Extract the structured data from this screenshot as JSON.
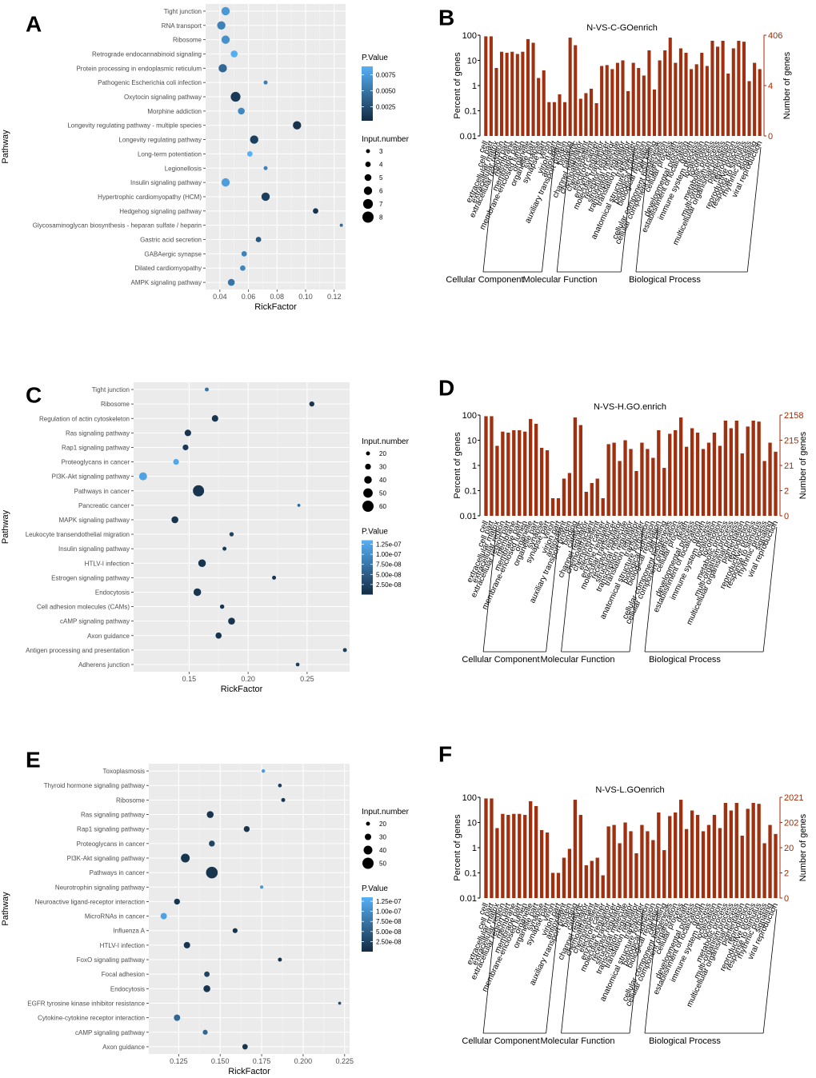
{
  "chart_data": [
    {
      "id": "A",
      "type": "scatter",
      "panel_label": "A",
      "xlabel": "RickFactor",
      "ylabel": "Pathway",
      "xlim": [
        0.03,
        0.128
      ],
      "xticks": [
        0.04,
        0.06,
        0.08,
        0.1,
        0.12
      ],
      "xtick_labels": [
        "0.04",
        "0.06",
        "0.08",
        "0.10",
        "0.12"
      ],
      "color_legend": {
        "title": "P.Value",
        "min": 0.0003,
        "max": 0.0088,
        "ticks": [
          0.0075,
          0.005,
          0.0025
        ],
        "tick_labels": [
          "0.0075",
          "0.0050",
          "0.0025"
        ]
      },
      "size_legend": {
        "title": "Input.number",
        "values": [
          3,
          4,
          5,
          6,
          7,
          8
        ],
        "labels": [
          "3",
          "4",
          "5",
          "6",
          "7",
          "8"
        ]
      },
      "legend_order": [
        "color",
        "size"
      ],
      "size_min": 3,
      "size_max": 8,
      "points": [
        {
          "pathway": "Tight junction",
          "x": 0.044,
          "size": 6,
          "p": 0.0072
        },
        {
          "pathway": "RNA transport",
          "x": 0.041,
          "size": 6,
          "p": 0.0058
        },
        {
          "pathway": "Ribosome",
          "x": 0.044,
          "size": 6,
          "p": 0.0068
        },
        {
          "pathway": "Retrograde endocannabinoid signaling",
          "x": 0.05,
          "size": 5,
          "p": 0.0085
        },
        {
          "pathway": "Protein processing in endoplasmic reticulum",
          "x": 0.042,
          "size": 6,
          "p": 0.0042
        },
        {
          "pathway": "Pathogenic Escherichia coli infection",
          "x": 0.072,
          "size": 3,
          "p": 0.0055
        },
        {
          "pathway": "Oxytocin signaling pathway",
          "x": 0.051,
          "size": 7,
          "p": 0.0012
        },
        {
          "pathway": "Morphine addiction",
          "x": 0.055,
          "size": 5,
          "p": 0.0062
        },
        {
          "pathway": "Longevity regulating pathway - multiple species",
          "x": 0.094,
          "size": 6,
          "p": 0.0008
        },
        {
          "pathway": "Longevity regulating pathway",
          "x": 0.064,
          "size": 6,
          "p": 0.0016
        },
        {
          "pathway": "Long-term potentiation",
          "x": 0.061,
          "size": 4,
          "p": 0.0088
        },
        {
          "pathway": "Legionellosis",
          "x": 0.072,
          "size": 3,
          "p": 0.0058
        },
        {
          "pathway": "Insulin signaling pathway",
          "x": 0.044,
          "size": 6,
          "p": 0.0075
        },
        {
          "pathway": "Hypertrophic cardiomyopathy (HCM)",
          "x": 0.072,
          "size": 6,
          "p": 0.0015
        },
        {
          "pathway": "Hedgehog signaling pathway",
          "x": 0.107,
          "size": 4,
          "p": 0.0009
        },
        {
          "pathway": "Glycosaminoglycan biosynthesis - heparan sulfate / heparin",
          "x": 0.125,
          "size": 1.5,
          "p": 0.0045
        },
        {
          "pathway": "Gastric acid secretion",
          "x": 0.067,
          "size": 4,
          "p": 0.003
        },
        {
          "pathway": "GABAergic synapse",
          "x": 0.057,
          "size": 4,
          "p": 0.0058
        },
        {
          "pathway": "Dilated cardiomyopathy",
          "x": 0.056,
          "size": 4,
          "p": 0.006
        },
        {
          "pathway": "AMPK signaling pathway",
          "x": 0.048,
          "size": 5,
          "p": 0.005
        }
      ]
    },
    {
      "id": "C",
      "type": "scatter",
      "panel_label": "C",
      "xlabel": "RickFactor",
      "ylabel": "Pathway",
      "xlim": [
        0.103,
        0.286
      ],
      "xticks": [
        0.15,
        0.2,
        0.25
      ],
      "xtick_labels": [
        "0.15",
        "0.20",
        "0.25"
      ],
      "color_legend": {
        "title": "P.Value",
        "min": 0.0,
        "max": 1.35e-07,
        "ticks": [
          1.25e-07,
          1e-07,
          7.5e-08,
          5e-08,
          2.5e-08
        ],
        "tick_labels": [
          "1.25e-07",
          "1.00e-07",
          "7.50e-08",
          "5.00e-08",
          "2.50e-08"
        ]
      },
      "size_legend": {
        "title": "Input.number",
        "values": [
          20,
          30,
          40,
          50,
          60
        ],
        "labels": [
          "20",
          "30",
          "40",
          "50",
          "60"
        ]
      },
      "legend_order": [
        "size",
        "color"
      ],
      "size_min": 20,
      "size_max": 60,
      "points": [
        {
          "pathway": "Tight junction",
          "x": 0.165,
          "size": 18,
          "p": 7.5e-08
        },
        {
          "pathway": "Ribosome",
          "x": 0.254,
          "size": 26,
          "p": 1e-08
        },
        {
          "pathway": "Regulation of actin cytoskeleton",
          "x": 0.172,
          "size": 34,
          "p": 1e-08
        },
        {
          "pathway": "Ras signaling pathway",
          "x": 0.149,
          "size": 34,
          "p": 1e-08
        },
        {
          "pathway": "Rap1 signaling pathway",
          "x": 0.147,
          "size": 30,
          "p": 1.5e-08
        },
        {
          "pathway": "Proteoglycans in cancer",
          "x": 0.139,
          "size": 30,
          "p": 1.25e-07
        },
        {
          "pathway": "PI3K-Akt signaling pathway",
          "x": 0.111,
          "size": 42,
          "p": 1.2e-07
        },
        {
          "pathway": "Pathways in cancer",
          "x": 0.158,
          "size": 60,
          "p": 1e-08
        },
        {
          "pathway": "Pancreatic cancer",
          "x": 0.243,
          "size": 8,
          "p": 6e-08
        },
        {
          "pathway": "MAPK signaling pathway",
          "x": 0.138,
          "size": 36,
          "p": 1e-08
        },
        {
          "pathway": "Leukocyte transendothelial migration",
          "x": 0.186,
          "size": 22,
          "p": 2.5e-08
        },
        {
          "pathway": "Insulin signaling pathway",
          "x": 0.18,
          "size": 20,
          "p": 1.5e-08
        },
        {
          "pathway": "HTLV-I infection",
          "x": 0.161,
          "size": 40,
          "p": 1e-08
        },
        {
          "pathway": "Estrogen signaling pathway",
          "x": 0.222,
          "size": 18,
          "p": 1e-08
        },
        {
          "pathway": "Endocytosis",
          "x": 0.157,
          "size": 40,
          "p": 1e-08
        },
        {
          "pathway": "Cell adhesion molecules (CAMs)",
          "x": 0.178,
          "size": 22,
          "p": 1e-08
        },
        {
          "pathway": "cAMP signaling pathway",
          "x": 0.186,
          "size": 36,
          "p": 1e-08
        },
        {
          "pathway": "Axon guidance",
          "x": 0.175,
          "size": 32,
          "p": 1e-08
        },
        {
          "pathway": "Antigen processing and presentation",
          "x": 0.282,
          "size": 20,
          "p": 2e-08
        },
        {
          "pathway": "Adherens junction",
          "x": 0.242,
          "size": 16,
          "p": 2e-08
        }
      ]
    },
    {
      "id": "E",
      "type": "scatter",
      "panel_label": "E",
      "xlabel": "RickFactor",
      "ylabel": "Pathway",
      "xlim": [
        0.107,
        0.228
      ],
      "xticks": [
        0.125,
        0.15,
        0.175,
        0.2,
        0.225
      ],
      "xtick_labels": [
        "0.125",
        "0.150",
        "0.175",
        "0.200",
        "0.225"
      ],
      "color_legend": {
        "title": "P.Value",
        "min": 0.0,
        "max": 1.35e-07,
        "ticks": [
          1.25e-07,
          1e-07,
          7.5e-08,
          5e-08,
          2.5e-08
        ],
        "tick_labels": [
          "1.25e-07",
          "1.00e-07",
          "7.50e-08",
          "5.00e-08",
          "2.50e-08"
        ]
      },
      "size_legend": {
        "title": "Input.number",
        "values": [
          20,
          30,
          40,
          50
        ],
        "labels": [
          "20",
          "30",
          "40",
          "50"
        ]
      },
      "legend_order": [
        "size",
        "color"
      ],
      "size_min": 20,
      "size_max": 50,
      "points": [
        {
          "pathway": "Toxoplasmosis",
          "x": 0.176,
          "size": 14,
          "p": 1.15e-07
        },
        {
          "pathway": "Thyroid hormone signaling pathway",
          "x": 0.186,
          "size": 16,
          "p": 2e-08
        },
        {
          "pathway": "Ribosome",
          "x": 0.188,
          "size": 18,
          "p": 1e-08
        },
        {
          "pathway": "Ras signaling pathway",
          "x": 0.144,
          "size": 32,
          "p": 1e-08
        },
        {
          "pathway": "Rap1 signaling pathway",
          "x": 0.166,
          "size": 28,
          "p": 1e-08
        },
        {
          "pathway": "Proteoglycans in cancer",
          "x": 0.145,
          "size": 28,
          "p": 2.5e-08
        },
        {
          "pathway": "PI3K-Akt signaling pathway",
          "x": 0.129,
          "size": 40,
          "p": 1e-08
        },
        {
          "pathway": "Pathways in cancer",
          "x": 0.145,
          "size": 52,
          "p": 1e-08
        },
        {
          "pathway": "Neurotrophin signaling pathway",
          "x": 0.175,
          "size": 12,
          "p": 1.1e-07
        },
        {
          "pathway": "Neuroactive ligand-receptor interaction",
          "x": 0.124,
          "size": 28,
          "p": 1e-08
        },
        {
          "pathway": "MicroRNAs in cancer",
          "x": 0.116,
          "size": 30,
          "p": 1.2e-07
        },
        {
          "pathway": "Influenza A",
          "x": 0.159,
          "size": 24,
          "p": 1e-08
        },
        {
          "pathway": "HTLV-I infection",
          "x": 0.13,
          "size": 30,
          "p": 1e-08
        },
        {
          "pathway": "FoxO signaling pathway",
          "x": 0.186,
          "size": 18,
          "p": 1e-08
        },
        {
          "pathway": "Focal adhesion",
          "x": 0.142,
          "size": 26,
          "p": 2.5e-08
        },
        {
          "pathway": "Endocytosis",
          "x": 0.142,
          "size": 32,
          "p": 1e-08
        },
        {
          "pathway": "EGFR tyrosine kinase inhibitor resistance",
          "x": 0.222,
          "size": 8,
          "p": 3.5e-08
        },
        {
          "pathway": "Cytokine-cytokine receptor interaction",
          "x": 0.124,
          "size": 30,
          "p": 6e-08
        },
        {
          "pathway": "cAMP signaling pathway",
          "x": 0.141,
          "size": 24,
          "p": 6e-08
        },
        {
          "pathway": "Axon guidance",
          "x": 0.165,
          "size": 26,
          "p": 1e-08
        }
      ]
    },
    {
      "id": "B",
      "type": "bar",
      "panel_label": "B",
      "title": "N-VS-C-GOenrich",
      "ylabel": "Percent of genes",
      "y2label": "Number of genes",
      "yticks": [
        "100",
        "10",
        "1",
        "0.1",
        "0.01"
      ],
      "y2ticks": [
        "406",
        "4",
        "0"
      ],
      "groups": [
        "Cellular Component",
        "Molecular Function",
        "Biological Process"
      ],
      "categories": [
        "cell",
        "cell part",
        "extracellular matrix",
        "extracellular region",
        "extracellular region part",
        "membrane",
        "membrane part",
        "membrane-enclosed lumen",
        "organelle",
        "organelle part",
        "synapse",
        "synapse part",
        "virion",
        "virion part",
        "antioxidant",
        "auxiliary transport protein",
        "binding",
        "catalytic",
        "channel regulator",
        "chemoattractant",
        "chemorepellent",
        "electron carrier",
        "enzyme regulator",
        "molecular transducer",
        "receptor regulator",
        "structural molecule",
        "transcription regulator",
        "translation regulator",
        "transporter",
        "anatomical structure formation",
        "biological adhesion",
        "biological regulation",
        "cell killing",
        "cellular component biogenesis",
        "cellular component organization",
        "cellular process",
        "death",
        "developmental process",
        "establishment of localization",
        "growth",
        "immune system process",
        "localization",
        "locomotion",
        "metabolic process",
        "multi-organism process",
        "multicellular organismal process",
        "pigmentation",
        "reproduction",
        "reproductive process",
        "response to stimulus",
        "rhythmic process",
        "signaling",
        "viral reproduction"
      ],
      "values": [
        90,
        90,
        5,
        22,
        20,
        22,
        18,
        22,
        70,
        50,
        2,
        4,
        0.22,
        0.22,
        0.45,
        0.22,
        80,
        40,
        0.3,
        0.5,
        0.75,
        0.2,
        6,
        6.5,
        4.5,
        8,
        10,
        0.6,
        8,
        5,
        2.5,
        25,
        0.7,
        10,
        25,
        80,
        8,
        30,
        20,
        4.5,
        7,
        20,
        6,
        60,
        35,
        60,
        3,
        30,
        60,
        55,
        1.5,
        8,
        4.5
      ],
      "group_ends": [
        13,
        28,
        52
      ]
    },
    {
      "id": "D",
      "type": "bar",
      "panel_label": "D",
      "title": "N-VS-H.GO.enrich",
      "ylabel": "Percent of genes",
      "y2label": "Number of genes",
      "yticks": [
        "100",
        "10",
        "1",
        "0.1",
        "0.01"
      ],
      "y2ticks": [
        "2158",
        "215",
        "21",
        "2",
        "0"
      ],
      "groups": [
        "Cellular Component",
        "Molecular Function",
        "Biological Process"
      ],
      "categories": [
        "cell",
        "cell part",
        "extracellular matrix",
        "extracellular region",
        "extracellular region part",
        "membrane",
        "membrane part",
        "membrane-enclosed lumen",
        "organelle",
        "organelle part",
        "synapse",
        "synapse part",
        "virion",
        "virion part",
        "antioxidant",
        "auxiliary transport protein",
        "binding",
        "catalytic",
        "channel regulator",
        "chemoattractant",
        "chemorepellent",
        "electron carrier",
        "enzyme regulator",
        "molecular transducer",
        "receptor regulator",
        "structural molecule",
        "transcription regulator",
        "translation regulator",
        "transporter",
        "anatomical structure formation",
        "biological adhesion",
        "biological regulation",
        "cell killing",
        "cellular component biogenesis",
        "cellular component organization",
        "cellular process",
        "death",
        "developmental process",
        "establishment of localization",
        "growth",
        "immune system process",
        "localization",
        "locomotion",
        "metabolic process",
        "multi-organism process",
        "multicellular organismal process",
        "pigmentation",
        "reproduction",
        "reproductive process",
        "response to stimulus",
        "rhythmic process",
        "signaling",
        "viral reproduction"
      ],
      "values": [
        90,
        90,
        6,
        22,
        20,
        25,
        25,
        22,
        70,
        45,
        5,
        4,
        0.05,
        0.05,
        0.3,
        0.5,
        80,
        40,
        0.09,
        0.2,
        0.3,
        0.05,
        7,
        8,
        1.5,
        10,
        4.5,
        0.6,
        8,
        4.5,
        2,
        25,
        0.8,
        18,
        25,
        80,
        5.5,
        30,
        20,
        4.5,
        8,
        20,
        6,
        60,
        30,
        60,
        3,
        35,
        60,
        55,
        1.5,
        8,
        3.5
      ],
      "group_ends": [
        13,
        28,
        52
      ]
    },
    {
      "id": "F",
      "type": "bar",
      "panel_label": "F",
      "title": "N-VS-L.GOenrich",
      "ylabel": "Percent of genes",
      "y2label": "Number of genes",
      "yticks": [
        "100",
        "10",
        "1",
        "0.1",
        "0.01"
      ],
      "y2ticks": [
        "2021",
        "202",
        "20",
        "2",
        "0"
      ],
      "groups": [
        "Cellular Component",
        "Molecular Function",
        "Biological Process"
      ],
      "categories": [
        "cell",
        "cell part",
        "extracellular matrix",
        "extracellular region",
        "extracellular region part",
        "membrane",
        "membrane part",
        "membrane-enclosed lumen",
        "organelle",
        "organelle part",
        "synapse",
        "synapse part",
        "virion",
        "virion part",
        "antioxidant",
        "auxiliary transport protein",
        "binding",
        "catalytic",
        "channel regulator",
        "chemoattractant",
        "chemorepellent",
        "electron carrier",
        "enzyme regulator",
        "molecular transducer",
        "receptor regulator",
        "structural molecule",
        "transcription regulator",
        "translation regulator",
        "transporter",
        "anatomical structure formation",
        "biological adhesion",
        "biological regulation",
        "cell killing",
        "cellular component biogenesis",
        "cellular component organization",
        "cellular process",
        "death",
        "developmental process",
        "establishment of localization",
        "growth",
        "immune system process",
        "localization",
        "locomotion",
        "metabolic process",
        "multi-organism process",
        "multicellular organismal process",
        "pigmentation",
        "reproduction",
        "reproductive process",
        "response to stimulus",
        "rhythmic process",
        "signaling",
        "viral reproduction"
      ],
      "values": [
        90,
        90,
        6,
        22,
        20,
        22,
        22,
        20,
        70,
        45,
        5,
        4,
        0.1,
        0.1,
        0.4,
        0.9,
        80,
        20,
        0.2,
        0.3,
        0.4,
        0.08,
        7,
        8,
        1.5,
        10,
        4.5,
        0.6,
        8,
        4.5,
        2,
        25,
        0.8,
        18,
        25,
        80,
        5.5,
        30,
        20,
        4.5,
        8,
        20,
        6,
        60,
        30,
        60,
        3,
        35,
        60,
        55,
        1.5,
        8,
        3.5
      ],
      "group_ends": [
        13,
        28,
        52
      ]
    }
  ],
  "colors": {
    "panel_bg": "#ebebeb",
    "grid": "#ffffff",
    "p_low": "#132b43",
    "p_high": "#56b1f7",
    "bar": "#a0300f",
    "red_axis": "#a52a00"
  }
}
